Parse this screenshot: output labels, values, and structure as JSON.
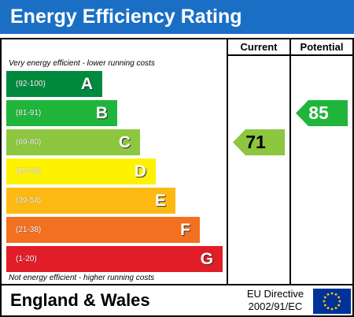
{
  "title": "Energy Efficiency Rating",
  "columns": {
    "current": "Current",
    "potential": "Potential"
  },
  "notes": {
    "top": "Very energy efficient - lower running costs",
    "bottom": "Not energy efficient - higher running costs"
  },
  "chart_data": {
    "type": "bar",
    "categories": [
      "A",
      "B",
      "C",
      "D",
      "E",
      "F",
      "G"
    ],
    "ranges": [
      "(92-100)",
      "(81-91)",
      "(69-80)",
      "(55-68)",
      "(39-54)",
      "(21-38)",
      "(1-20)"
    ],
    "band_colors": [
      "#008a3e",
      "#1fb53b",
      "#8dc63f",
      "#fff200",
      "#fdb912",
      "#f37021",
      "#e11d27"
    ],
    "current": {
      "value": 71,
      "band": "C",
      "color": "#8dc63f"
    },
    "potential": {
      "value": 85,
      "band": "B",
      "color": "#1fb53b"
    }
  },
  "footer": {
    "region": "England & Wales",
    "directive_line1": "EU Directive",
    "directive_line2": "2002/91/EC"
  },
  "flag_icon": "eu-flag-icon"
}
